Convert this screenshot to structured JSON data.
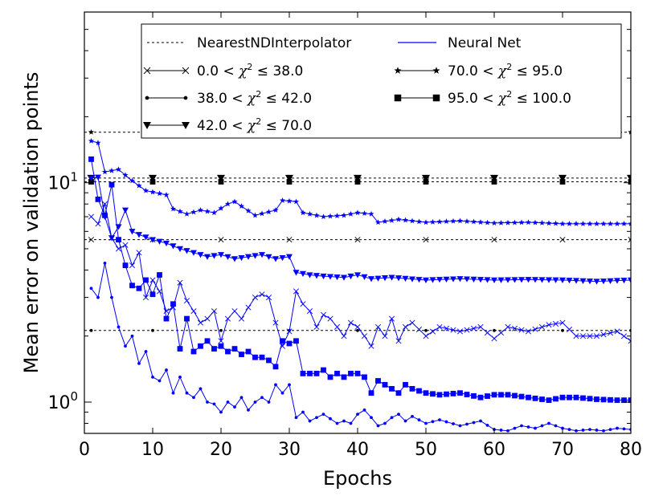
{
  "chart_data": {
    "type": "line",
    "xlabel": "Epochs",
    "ylabel": "Mean error on validation points",
    "xlim": [
      0,
      80
    ],
    "ylim": [
      0.72,
      60
    ],
    "yscale": "log",
    "xticks": [
      0,
      10,
      20,
      30,
      40,
      50,
      60,
      70,
      80
    ],
    "yticks": [
      {
        "value": 1,
        "base": "10",
        "exp": "0"
      },
      {
        "value": 10,
        "base": "10",
        "exp": "1"
      }
    ],
    "legend": {
      "placement": "top-right",
      "entries": [
        {
          "text": "NearestNDInterpolator",
          "kind": "dotted"
        },
        {
          "text": "0.0 < χ² ≤ 38.0",
          "pre": "0.0 < ",
          "post": " ≤ 38.0",
          "marker": "x"
        },
        {
          "text": "38.0 < χ² ≤ 42.0",
          "pre": "38.0 < ",
          "post": " ≤ 42.0",
          "marker": "dot"
        },
        {
          "text": "42.0 < χ² ≤ 70.0",
          "pre": "42.0 < ",
          "post": " ≤ 70.0",
          "marker": "tri"
        },
        {
          "text": "Neural Net",
          "kind": "blue"
        },
        {
          "text": "70.0 < χ² ≤ 95.0",
          "pre": "70.0 < ",
          "post": " ≤ 95.0",
          "marker": "star"
        },
        {
          "text": "95.0 < χ² ≤ 100.0",
          "pre": "95.0 < ",
          "post": " ≤ 100.0",
          "marker": "square"
        }
      ]
    },
    "colors": {
      "neural_net": "#0000ff",
      "nearest_nd": "#000000"
    },
    "nearest_nd_series": [
      {
        "name": "0.0 < χ² ≤ 38.0",
        "marker": "x",
        "value": 5.5
      },
      {
        "name": "38.0 < χ² ≤ 42.0",
        "marker": "dot",
        "value": 2.12
      },
      {
        "name": "42.0 < χ² ≤ 70.0",
        "marker": "tri",
        "value": 10.5
      },
      {
        "name": "70.0 < χ² ≤ 95.0",
        "marker": "star",
        "value": 17.0
      },
      {
        "name": "95.0 < χ² ≤ 100.0",
        "marker": "square",
        "value": 10.1
      }
    ],
    "nearest_nd_x": [
      1,
      10,
      20,
      30,
      40,
      50,
      60,
      70,
      80
    ],
    "neural_net_series": [
      {
        "name": "70.0 < χ² ≤ 95.0",
        "marker": "star",
        "anchors": [
          [
            1,
            15.5
          ],
          [
            2,
            15.2
          ],
          [
            3,
            11.2
          ],
          [
            5,
            11.5
          ],
          [
            7,
            10.2
          ],
          [
            9,
            9.2
          ],
          [
            12,
            8.8
          ],
          [
            13,
            7.6
          ],
          [
            15,
            7.2
          ],
          [
            17,
            7.5
          ],
          [
            19,
            7.3
          ],
          [
            21,
            8.0
          ],
          [
            22,
            8.2
          ],
          [
            25,
            7.1
          ],
          [
            28,
            7.5
          ],
          [
            29,
            8.3
          ],
          [
            31,
            8.2
          ],
          [
            32,
            7.3
          ],
          [
            35,
            7.0
          ],
          [
            38,
            7.1
          ],
          [
            40,
            7.3
          ],
          [
            42,
            7.2
          ],
          [
            43,
            6.6
          ],
          [
            46,
            6.8
          ],
          [
            50,
            6.6
          ],
          [
            55,
            6.7
          ],
          [
            60,
            6.55
          ],
          [
            65,
            6.6
          ],
          [
            70,
            6.5
          ],
          [
            75,
            6.5
          ],
          [
            80,
            6.5
          ]
        ]
      },
      {
        "name": "42.0 < χ² ≤ 70.0",
        "marker": "tri",
        "anchors": [
          [
            1,
            10.5
          ],
          [
            2,
            10.6
          ],
          [
            3,
            7.0
          ],
          [
            4,
            5.6
          ],
          [
            5,
            6.3
          ],
          [
            6,
            7.5
          ],
          [
            7,
            6.0
          ],
          [
            8,
            5.8
          ],
          [
            10,
            5.5
          ],
          [
            12,
            5.3
          ],
          [
            14,
            5.0
          ],
          [
            16,
            4.8
          ],
          [
            18,
            4.6
          ],
          [
            20,
            4.7
          ],
          [
            22,
            4.5
          ],
          [
            24,
            4.6
          ],
          [
            26,
            4.7
          ],
          [
            28,
            4.5
          ],
          [
            30,
            4.6
          ],
          [
            31,
            3.9
          ],
          [
            33,
            3.8
          ],
          [
            35,
            3.75
          ],
          [
            38,
            3.7
          ],
          [
            40,
            3.8
          ],
          [
            42,
            3.65
          ],
          [
            45,
            3.7
          ],
          [
            50,
            3.6
          ],
          [
            55,
            3.65
          ],
          [
            60,
            3.6
          ],
          [
            65,
            3.62
          ],
          [
            70,
            3.6
          ],
          [
            75,
            3.55
          ],
          [
            80,
            3.6
          ]
        ]
      },
      {
        "name": "0.0 < χ² ≤ 38.0",
        "marker": "x",
        "anchors": [
          [
            1,
            7.0
          ],
          [
            2,
            6.5
          ],
          [
            3,
            8.0
          ],
          [
            4,
            5.6
          ],
          [
            5,
            5.0
          ],
          [
            6,
            5.2
          ],
          [
            7,
            4.2
          ],
          [
            8,
            4.8
          ],
          [
            9,
            3.0
          ],
          [
            10,
            3.6
          ],
          [
            11,
            3.2
          ],
          [
            12,
            2.6
          ],
          [
            13,
            2.7
          ],
          [
            14,
            3.5
          ],
          [
            15,
            2.9
          ],
          [
            16,
            2.6
          ],
          [
            17,
            2.3
          ],
          [
            18,
            2.4
          ],
          [
            19,
            2.6
          ],
          [
            20,
            1.9
          ],
          [
            21,
            2.4
          ],
          [
            22,
            2.6
          ],
          [
            23,
            2.4
          ],
          [
            24,
            2.7
          ],
          [
            25,
            3.0
          ],
          [
            26,
            3.1
          ],
          [
            27,
            3.0
          ],
          [
            28,
            2.3
          ],
          [
            29,
            1.8
          ],
          [
            30,
            2.1
          ],
          [
            31,
            3.2
          ],
          [
            32,
            2.8
          ],
          [
            33,
            2.6
          ],
          [
            34,
            2.2
          ],
          [
            35,
            2.5
          ],
          [
            36,
            2.4
          ],
          [
            37,
            2.2
          ],
          [
            38,
            2.0
          ],
          [
            39,
            2.3
          ],
          [
            40,
            2.2
          ],
          [
            41,
            2.0
          ],
          [
            42,
            1.8
          ],
          [
            43,
            2.2
          ],
          [
            44,
            2.0
          ],
          [
            45,
            2.4
          ],
          [
            46,
            1.9
          ],
          [
            47,
            2.2
          ],
          [
            48,
            2.3
          ],
          [
            50,
            2.0
          ],
          [
            52,
            2.2
          ],
          [
            55,
            2.1
          ],
          [
            58,
            2.2
          ],
          [
            60,
            1.95
          ],
          [
            62,
            2.2
          ],
          [
            65,
            2.1
          ],
          [
            68,
            2.25
          ],
          [
            70,
            2.3
          ],
          [
            72,
            2.0
          ],
          [
            75,
            2.0
          ],
          [
            78,
            2.1
          ],
          [
            80,
            1.9
          ]
        ]
      },
      {
        "name": "95.0 < χ² ≤ 100.0",
        "marker": "square",
        "anchors": [
          [
            1,
            12.8
          ],
          [
            2,
            8.4
          ],
          [
            3,
            7.1
          ],
          [
            4,
            9.8
          ],
          [
            5,
            5.5
          ],
          [
            6,
            4.2
          ],
          [
            7,
            3.4
          ],
          [
            8,
            3.3
          ],
          [
            9,
            3.6
          ],
          [
            10,
            3.1
          ],
          [
            11,
            3.8
          ],
          [
            12,
            2.4
          ],
          [
            13,
            2.8
          ],
          [
            14,
            1.75
          ],
          [
            15,
            2.4
          ],
          [
            16,
            1.7
          ],
          [
            17,
            1.8
          ],
          [
            18,
            1.9
          ],
          [
            19,
            1.75
          ],
          [
            20,
            1.8
          ],
          [
            21,
            1.7
          ],
          [
            22,
            1.75
          ],
          [
            23,
            1.65
          ],
          [
            24,
            1.7
          ],
          [
            25,
            1.6
          ],
          [
            26,
            1.6
          ],
          [
            27,
            1.55
          ],
          [
            28,
            1.45
          ],
          [
            29,
            1.9
          ],
          [
            30,
            1.85
          ],
          [
            31,
            1.9
          ],
          [
            32,
            1.35
          ],
          [
            33,
            1.35
          ],
          [
            34,
            1.35
          ],
          [
            35,
            1.4
          ],
          [
            36,
            1.3
          ],
          [
            37,
            1.35
          ],
          [
            38,
            1.3
          ],
          [
            39,
            1.35
          ],
          [
            40,
            1.35
          ],
          [
            41,
            1.3
          ],
          [
            42,
            1.1
          ],
          [
            43,
            1.25
          ],
          [
            44,
            1.2
          ],
          [
            45,
            1.15
          ],
          [
            46,
            1.1
          ],
          [
            47,
            1.2
          ],
          [
            48,
            1.15
          ],
          [
            50,
            1.1
          ],
          [
            52,
            1.08
          ],
          [
            55,
            1.1
          ],
          [
            58,
            1.05
          ],
          [
            60,
            1.08
          ],
          [
            62,
            1.08
          ],
          [
            65,
            1.05
          ],
          [
            68,
            1.02
          ],
          [
            70,
            1.05
          ],
          [
            72,
            1.05
          ],
          [
            75,
            1.03
          ],
          [
            78,
            1.02
          ],
          [
            80,
            1.02
          ]
        ]
      },
      {
        "name": "38.0 < χ² ≤ 42.0",
        "marker": "dot",
        "anchors": [
          [
            1,
            3.3
          ],
          [
            2,
            3.0
          ],
          [
            3,
            4.3
          ],
          [
            4,
            3.0
          ],
          [
            5,
            2.2
          ],
          [
            6,
            1.8
          ],
          [
            7,
            2.0
          ],
          [
            8,
            1.5
          ],
          [
            9,
            1.7
          ],
          [
            10,
            1.3
          ],
          [
            11,
            1.25
          ],
          [
            12,
            1.4
          ],
          [
            13,
            1.1
          ],
          [
            14,
            1.3
          ],
          [
            15,
            1.1
          ],
          [
            16,
            1.05
          ],
          [
            17,
            1.15
          ],
          [
            18,
            1.0
          ],
          [
            19,
            0.98
          ],
          [
            20,
            0.9
          ],
          [
            21,
            1.0
          ],
          [
            22,
            0.95
          ],
          [
            23,
            1.05
          ],
          [
            24,
            0.92
          ],
          [
            25,
            1.0
          ],
          [
            26,
            1.05
          ],
          [
            27,
            1.0
          ],
          [
            28,
            1.2
          ],
          [
            29,
            1.1
          ],
          [
            30,
            1.2
          ],
          [
            31,
            0.85
          ],
          [
            32,
            0.9
          ],
          [
            33,
            0.82
          ],
          [
            34,
            0.85
          ],
          [
            35,
            0.88
          ],
          [
            36,
            0.84
          ],
          [
            37,
            0.8
          ],
          [
            38,
            0.82
          ],
          [
            39,
            0.8
          ],
          [
            40,
            0.88
          ],
          [
            41,
            0.92
          ],
          [
            42,
            0.85
          ],
          [
            43,
            0.78
          ],
          [
            44,
            0.8
          ],
          [
            45,
            0.85
          ],
          [
            46,
            0.88
          ],
          [
            47,
            0.82
          ],
          [
            48,
            0.86
          ],
          [
            50,
            0.8
          ],
          [
            52,
            0.83
          ],
          [
            55,
            0.78
          ],
          [
            58,
            0.82
          ],
          [
            60,
            0.75
          ],
          [
            62,
            0.74
          ],
          [
            64,
            0.78
          ],
          [
            66,
            0.76
          ],
          [
            68,
            0.8
          ],
          [
            70,
            0.76
          ],
          [
            72,
            0.74
          ],
          [
            74,
            0.75
          ],
          [
            76,
            0.74
          ],
          [
            78,
            0.76
          ],
          [
            80,
            0.75
          ]
        ]
      }
    ]
  }
}
